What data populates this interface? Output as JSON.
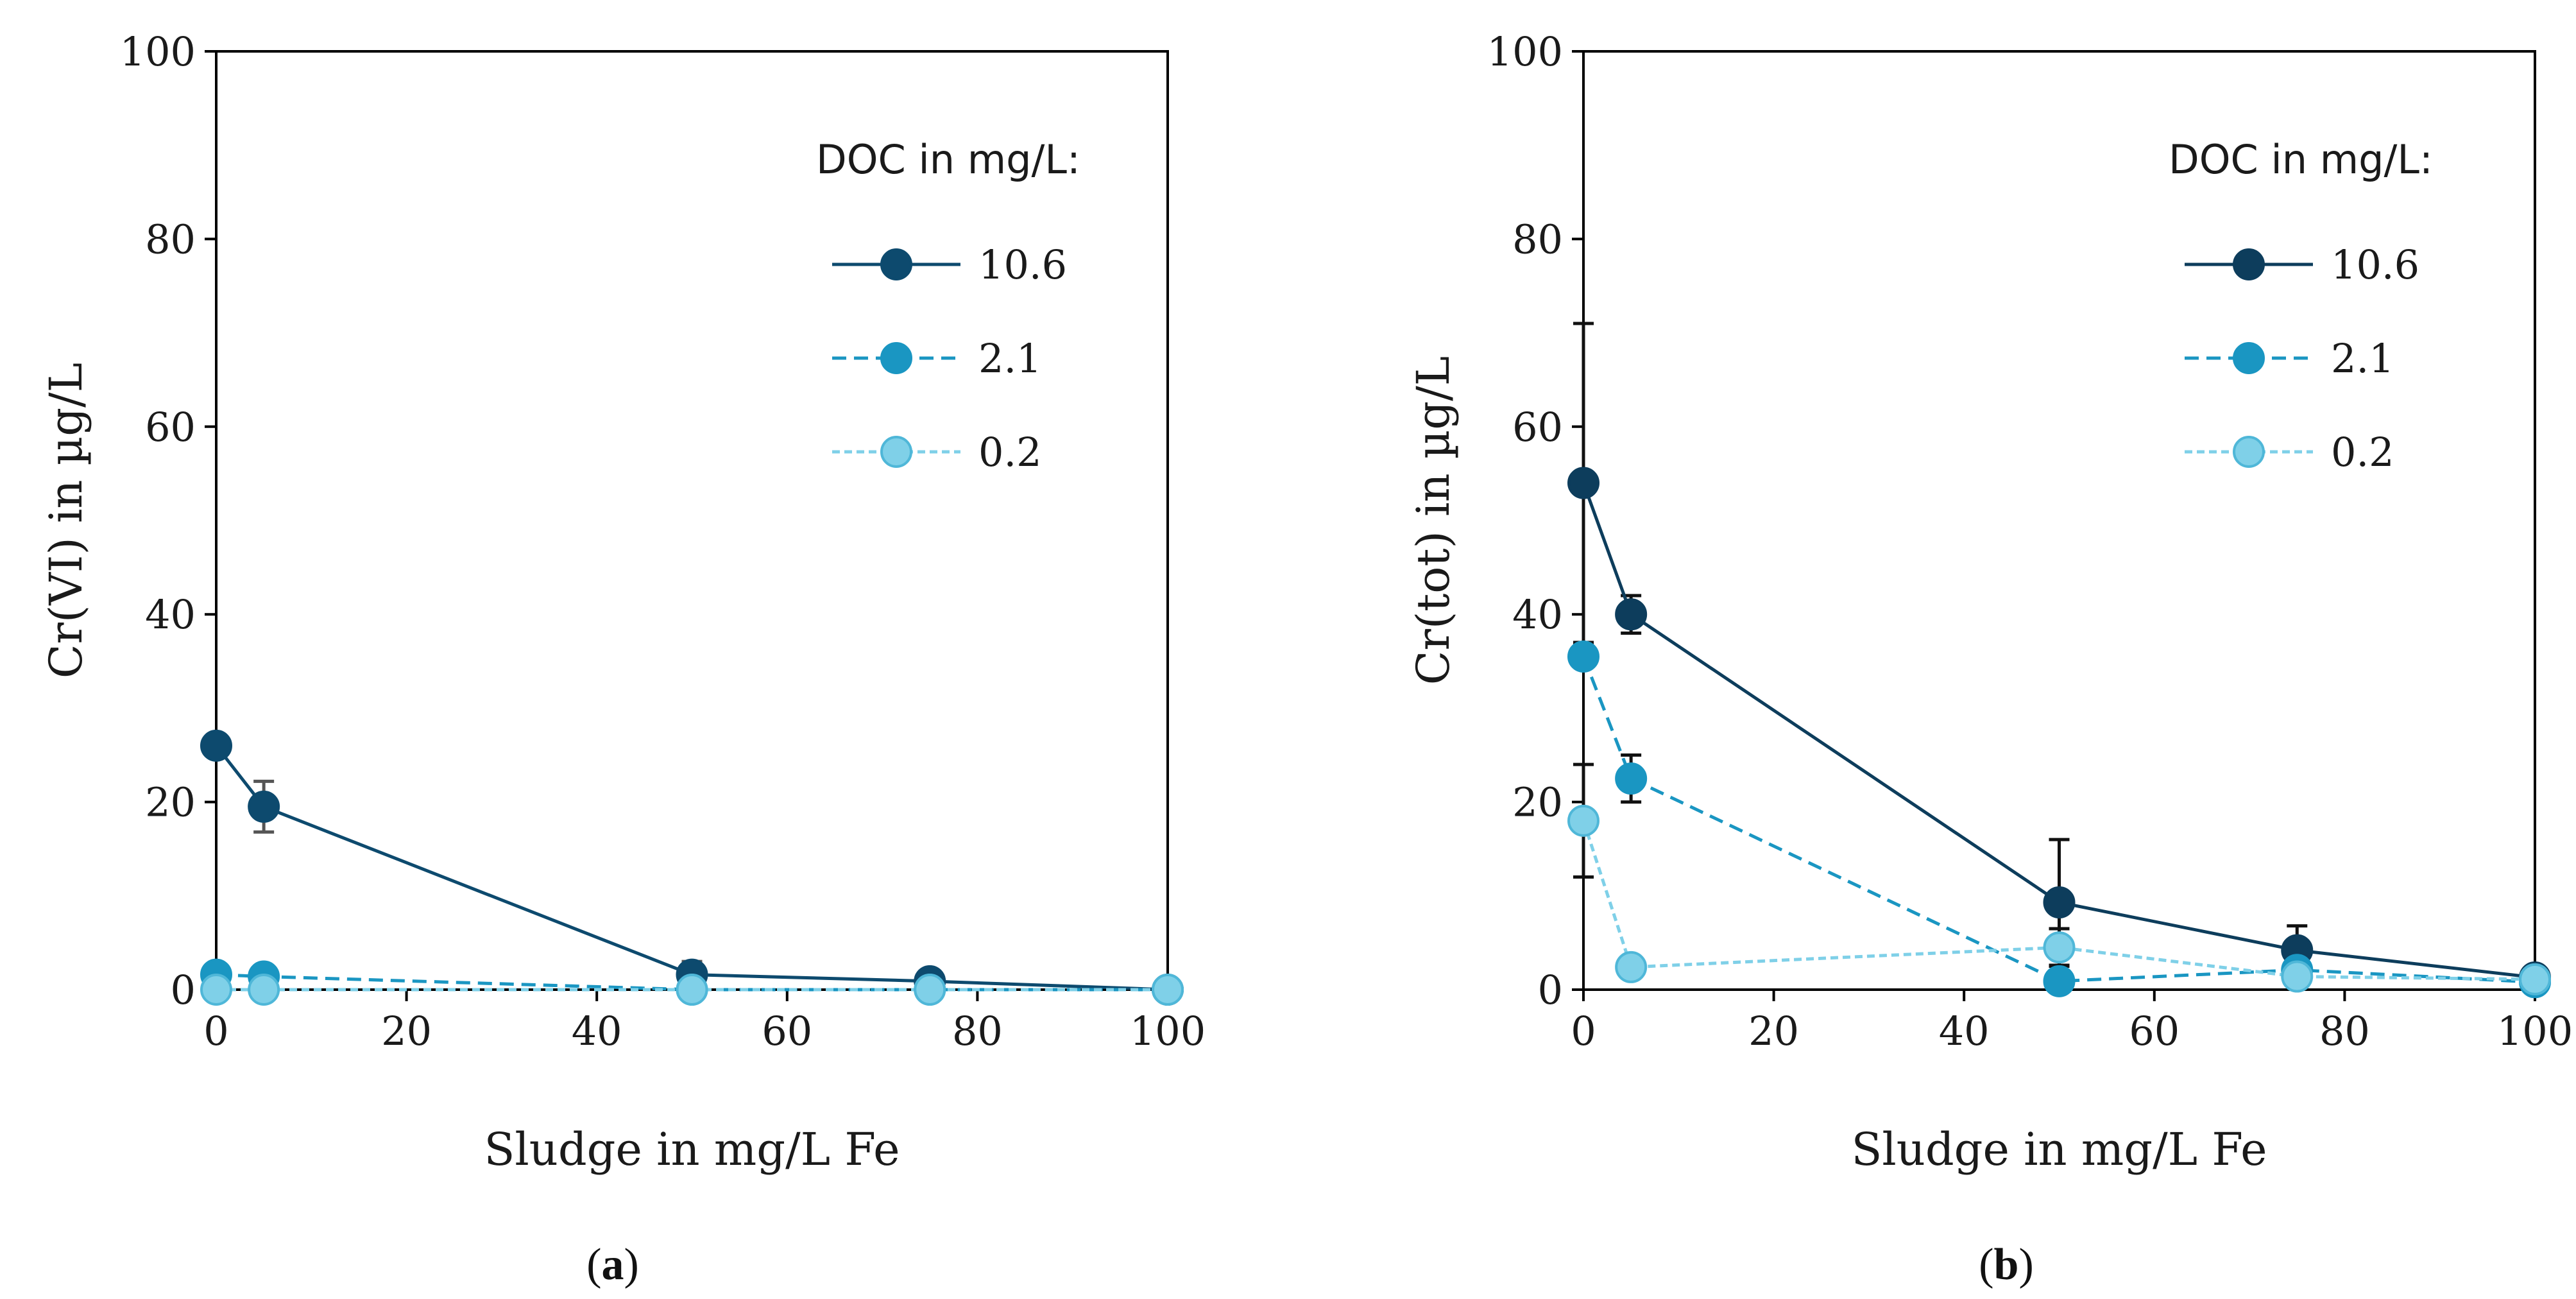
{
  "chart_data": [
    {
      "id": "a",
      "type": "line",
      "panel_label": "a",
      "xlabel": "Sludge in mg/L Fe",
      "ylabel": "Cr(VI) in µg/L",
      "xlim": [
        0,
        100
      ],
      "ylim": [
        0,
        100
      ],
      "xticks": [
        0,
        20,
        40,
        60,
        80,
        100
      ],
      "yticks": [
        0,
        20,
        40,
        60,
        80,
        100
      ],
      "grid": false,
      "legend_position": "top-right",
      "legend_title": "DOC in mg/L:",
      "series": [
        {
          "name": "10.6",
          "color": "#0d4a6e",
          "line_style": "solid",
          "x": [
            0,
            5,
            50,
            75,
            100
          ],
          "y": [
            26,
            19.5,
            1.6,
            0.9,
            0
          ],
          "err": [
            0,
            2.7,
            1.4,
            0,
            0
          ]
        },
        {
          "name": "2.1",
          "color": "#1a96c2",
          "line_style": "dashed",
          "x": [
            0,
            5,
            50,
            75,
            100
          ],
          "y": [
            1.6,
            1.4,
            0,
            0,
            0
          ],
          "err": [
            0,
            0,
            0,
            0,
            0
          ]
        },
        {
          "name": "0.2",
          "color": "#7fd0e8",
          "line_style": "dotted",
          "x": [
            0,
            5,
            50,
            75,
            100
          ],
          "y": [
            0,
            0,
            0,
            0,
            0
          ],
          "err": [
            0,
            0,
            0,
            0,
            0
          ]
        }
      ]
    },
    {
      "id": "b",
      "type": "line",
      "panel_label": "b",
      "xlabel": "Sludge in mg/L Fe",
      "ylabel": "Cr(tot) in µg/L",
      "xlim": [
        0,
        100
      ],
      "ylim": [
        0,
        100
      ],
      "xticks": [
        0,
        20,
        40,
        60,
        80,
        100
      ],
      "yticks": [
        0,
        20,
        40,
        60,
        80,
        100
      ],
      "grid": false,
      "legend_position": "top-right",
      "legend_title": "DOC in mg/L:",
      "series": [
        {
          "name": "10.6",
          "color": "#0d3d5c",
          "line_style": "solid",
          "x": [
            0,
            5,
            50,
            75,
            100
          ],
          "y": [
            54,
            40,
            9.3,
            4.2,
            1.3
          ],
          "err": [
            17,
            2,
            6.7,
            2.6,
            0
          ]
        },
        {
          "name": "2.1",
          "color": "#1a96c2",
          "line_style": "dashed",
          "x": [
            0,
            5,
            50,
            75,
            100
          ],
          "y": [
            35.5,
            22.5,
            0.9,
            2.1,
            0.8
          ],
          "err": [
            0,
            2.5,
            0,
            0,
            0
          ]
        },
        {
          "name": "0.2",
          "color": "#7fd0e8",
          "line_style": "dotted",
          "x": [
            0,
            5,
            50,
            75,
            100
          ],
          "y": [
            18,
            2.4,
            4.5,
            1.4,
            1.1
          ],
          "err": [
            6,
            0,
            2,
            0,
            0
          ]
        }
      ]
    }
  ]
}
